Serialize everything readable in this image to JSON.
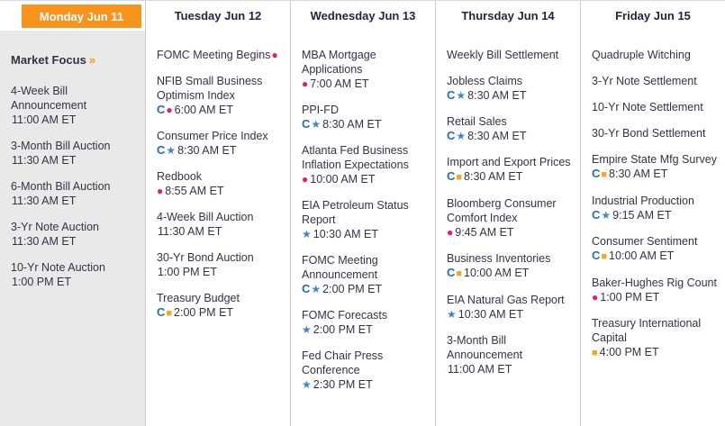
{
  "colors": {
    "selected_header_bg": "#f7941e",
    "selected_header_text": "#ffffff",
    "header_text": "#252542",
    "event_text": "#333344",
    "selected_column_bg": "#e9e9e9",
    "divider": "#cccccc",
    "market_focus_arrow": "#f7941e",
    "icon_consensus": "#2a6bad",
    "icon_dot": "#e01e6e",
    "icon_star": "#3d87c6",
    "icon_square": "#f5a81e"
  },
  "icon_glyphs": {
    "consensus": "C",
    "dot": "●",
    "star": "★",
    "square": "■"
  },
  "calendar": {
    "days": [
      {
        "header": "Monday Jun 11",
        "selected": true,
        "market_focus": {
          "label": "Market Focus",
          "arrow": "»"
        },
        "events": [
          {
            "title": "4-Week Bill Announcement",
            "icons": [],
            "time": "11:00 AM ET"
          },
          {
            "title": "3-Month Bill Auction",
            "icons": [],
            "time": "11:30 AM ET"
          },
          {
            "title": "6-Month Bill Auction",
            "icons": [],
            "time": "11:30 AM ET"
          },
          {
            "title": "3-Yr Note Auction",
            "icons": [],
            "time": "11:30 AM ET"
          },
          {
            "title": "10-Yr Note Auction",
            "icons": [],
            "time": "1:00 PM ET"
          }
        ]
      },
      {
        "header": "Tuesday Jun 12",
        "selected": false,
        "events": [
          {
            "title": "FOMC Meeting Begins",
            "title_icon": "dot",
            "icons": [],
            "time": ""
          },
          {
            "title": "NFIB Small Business Optimism Index",
            "icons": [
              "consensus",
              "dot"
            ],
            "time": "6:00 AM ET"
          },
          {
            "title": "Consumer Price Index",
            "icons": [
              "consensus",
              "star"
            ],
            "time": "8:30 AM ET"
          },
          {
            "title": "Redbook",
            "icons": [
              "dot"
            ],
            "time": "8:55 AM ET"
          },
          {
            "title": "4-Week Bill Auction",
            "icons": [],
            "time": "11:30 AM ET"
          },
          {
            "title": "30-Yr Bond Auction",
            "icons": [],
            "time": "1:00 PM ET"
          },
          {
            "title": "Treasury Budget",
            "icons": [
              "consensus",
              "square"
            ],
            "time": "2:00 PM ET"
          }
        ]
      },
      {
        "header": "Wednesday Jun 13",
        "selected": false,
        "events": [
          {
            "title": "MBA Mortgage Applications",
            "icons": [
              "dot"
            ],
            "time": "7:00 AM ET"
          },
          {
            "title": "PPI-FD",
            "icons": [
              "consensus",
              "star"
            ],
            "time": "8:30 AM ET"
          },
          {
            "title": "Atlanta Fed Business Inflation Expectations",
            "icons": [
              "dot"
            ],
            "time": "10:00 AM ET"
          },
          {
            "title": "EIA Petroleum Status Report",
            "icons": [
              "star"
            ],
            "time": "10:30 AM ET"
          },
          {
            "title": "FOMC Meeting Announcement",
            "icons": [
              "consensus",
              "star"
            ],
            "time": "2:00 PM ET"
          },
          {
            "title": "FOMC Forecasts",
            "icons": [
              "star"
            ],
            "time": "2:00 PM ET"
          },
          {
            "title": "Fed Chair Press Conference",
            "icons": [
              "star"
            ],
            "time": "2:30 PM ET"
          }
        ]
      },
      {
        "header": "Thursday Jun 14",
        "selected": false,
        "events": [
          {
            "title": "Weekly Bill Settlement",
            "icons": [],
            "time": ""
          },
          {
            "title": "Jobless Claims",
            "icons": [
              "consensus",
              "star"
            ],
            "time": "8:30 AM ET"
          },
          {
            "title": "Retail Sales",
            "icons": [
              "consensus",
              "star"
            ],
            "time": "8:30 AM ET"
          },
          {
            "title": "Import and Export Prices",
            "icons": [
              "consensus",
              "square"
            ],
            "time": "8:30 AM ET"
          },
          {
            "title": "Bloomberg Consumer Comfort Index",
            "icons": [
              "dot"
            ],
            "time": "9:45 AM ET"
          },
          {
            "title": "Business Inventories",
            "icons": [
              "consensus",
              "square"
            ],
            "time": "10:00 AM ET"
          },
          {
            "title": "EIA Natural Gas Report",
            "icons": [
              "star"
            ],
            "time": "10:30 AM ET"
          },
          {
            "title": "3-Month Bill Announcement",
            "icons": [],
            "time": "11:00 AM ET"
          }
        ]
      },
      {
        "header": "Friday Jun 15",
        "selected": false,
        "events": [
          {
            "title": "Quadruple Witching",
            "icons": [],
            "time": ""
          },
          {
            "title": "3-Yr Note Settlement",
            "icons": [],
            "time": ""
          },
          {
            "title": "10-Yr Note Settlement",
            "icons": [],
            "time": ""
          },
          {
            "title": "30-Yr Bond Settlement",
            "icons": [],
            "time": ""
          },
          {
            "title": "Empire State Mfg Survey",
            "icons": [
              "consensus",
              "square"
            ],
            "time": "8:30 AM ET"
          },
          {
            "title": "Industrial Production",
            "icons": [
              "consensus",
              "star"
            ],
            "time": "9:15 AM ET"
          },
          {
            "title": "Consumer Sentiment",
            "icons": [
              "consensus",
              "square"
            ],
            "time": "10:00 AM ET"
          },
          {
            "title": "Baker-Hughes Rig Count",
            "icons": [
              "dot"
            ],
            "time": "1:00 PM ET"
          },
          {
            "title": "Treasury International Capital",
            "icons": [
              "square"
            ],
            "time": "4:00 PM ET"
          }
        ]
      }
    ]
  }
}
